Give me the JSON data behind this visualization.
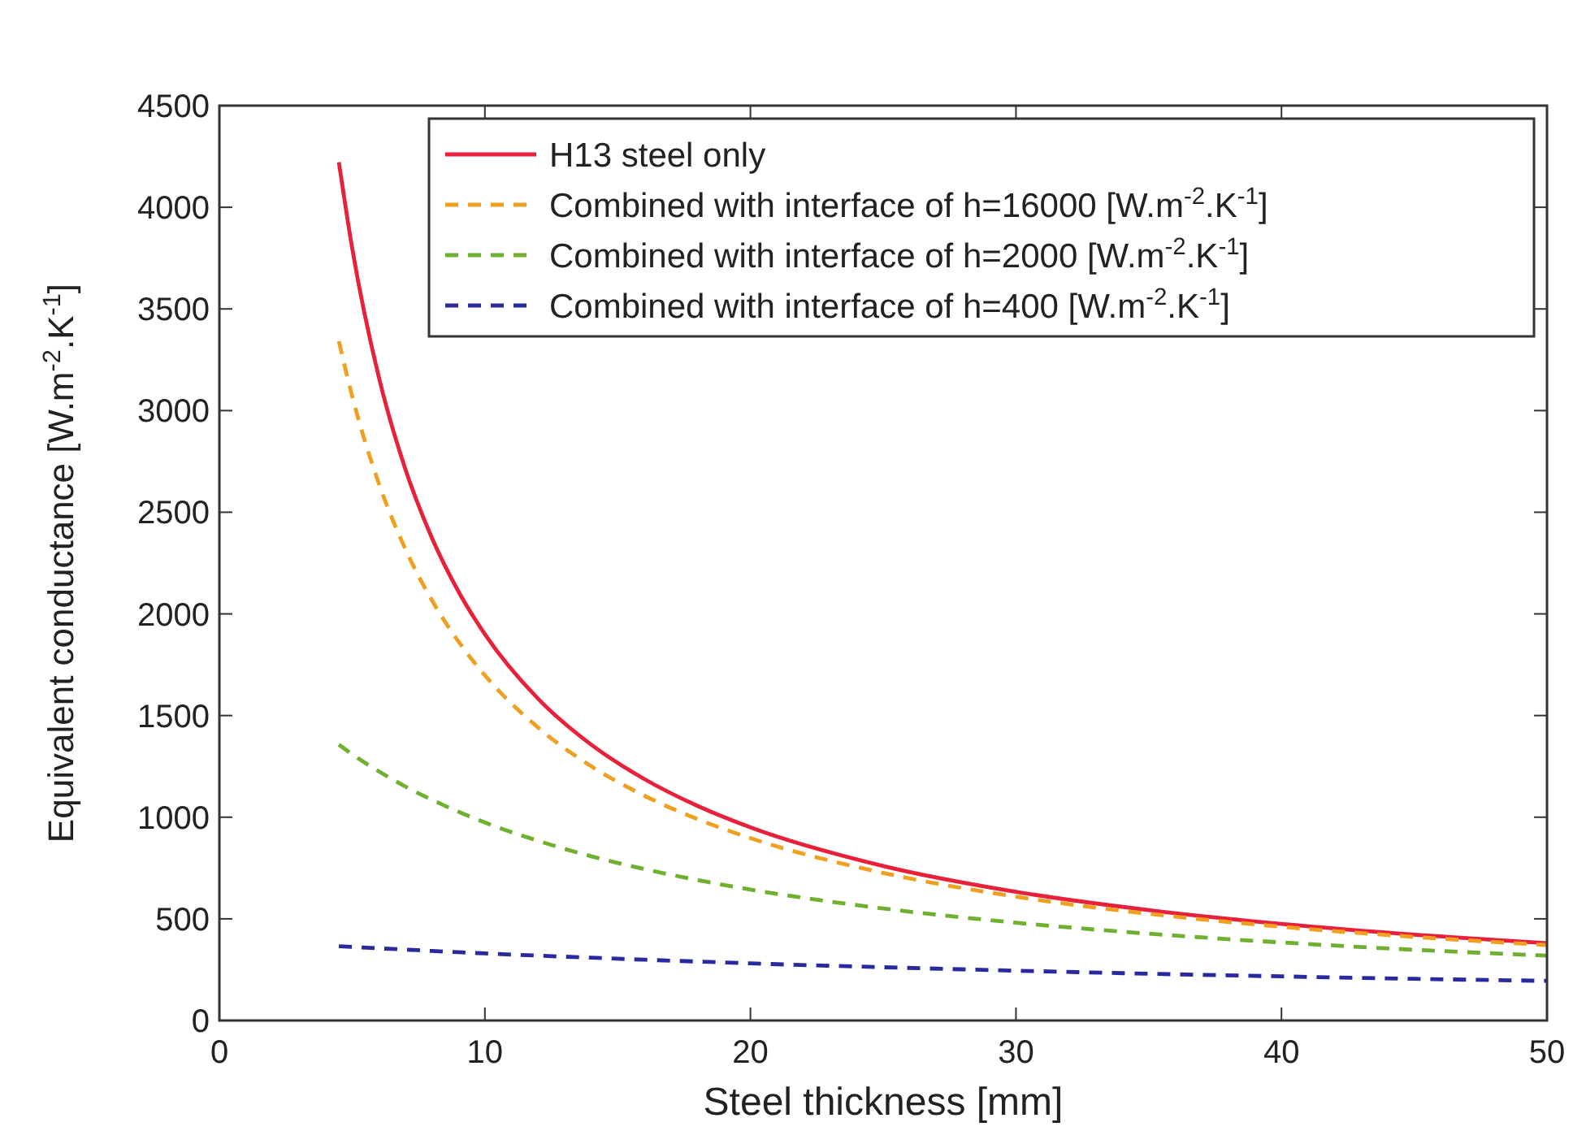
{
  "chart_data": {
    "type": "line",
    "xlabel": "Steel thickness [mm]",
    "ylabel": "Equivalent conductance [W.m$^{-2}$.K$^{-1}$]",
    "x": [
      4.5,
      5,
      6,
      7,
      8,
      9,
      10,
      12,
      14,
      16,
      18,
      20,
      25,
      30,
      35,
      40,
      45,
      50
    ],
    "series": [
      {
        "name": "H13 steel only",
        "color": "#e8203a",
        "line_style": "solid",
        "values": [
          4222,
          3800,
          3167,
          2714,
          2375,
          2111,
          1900,
          1583,
          1357,
          1188,
          1056,
          950,
          760,
          633,
          543,
          475,
          422,
          380
        ]
      },
      {
        "name": "Combined with interface of h=16000 [W.m$^{-2}$.K$^{-1}$]",
        "color": "#f0a020",
        "line_style": "dashed",
        "values": [
          3341,
          3071,
          2644,
          2320,
          2068,
          1865,
          1698,
          1441,
          1251,
          1106,
          991,
          897,
          726,
          609,
          525,
          461,
          411,
          371
        ]
      },
      {
        "name": "Combined with interface of h=2000 [W.m$^{-2}$.K$^{-1}$]",
        "color": "#70b030",
        "line_style": "dashed",
        "values": [
          1357,
          1310,
          1226,
          1151,
          1086,
          1027,
          974,
          884,
          808,
          745,
          691,
          644,
          551,
          481,
          427,
          384,
          348,
          319
        ]
      },
      {
        "name": "Combined with interface of h=400 [W.m$^{-2}$.K$^{-1}$]",
        "color": "#2a2aa0",
        "line_style": "dashed",
        "values": [
          365,
          362,
          355,
          349,
          342,
          336,
          330,
          319,
          309,
          299,
          290,
          281,
          262,
          245,
          230,
          217,
          205,
          195
        ]
      }
    ],
    "xlim": [
      0,
      50
    ],
    "xticks": [
      0,
      10,
      20,
      30,
      40,
      50
    ],
    "ylim": [
      0,
      4500
    ],
    "yticks": [
      0,
      500,
      1000,
      1500,
      2000,
      2500,
      3000,
      3500,
      4000,
      4500
    ],
    "legend": "top right"
  }
}
